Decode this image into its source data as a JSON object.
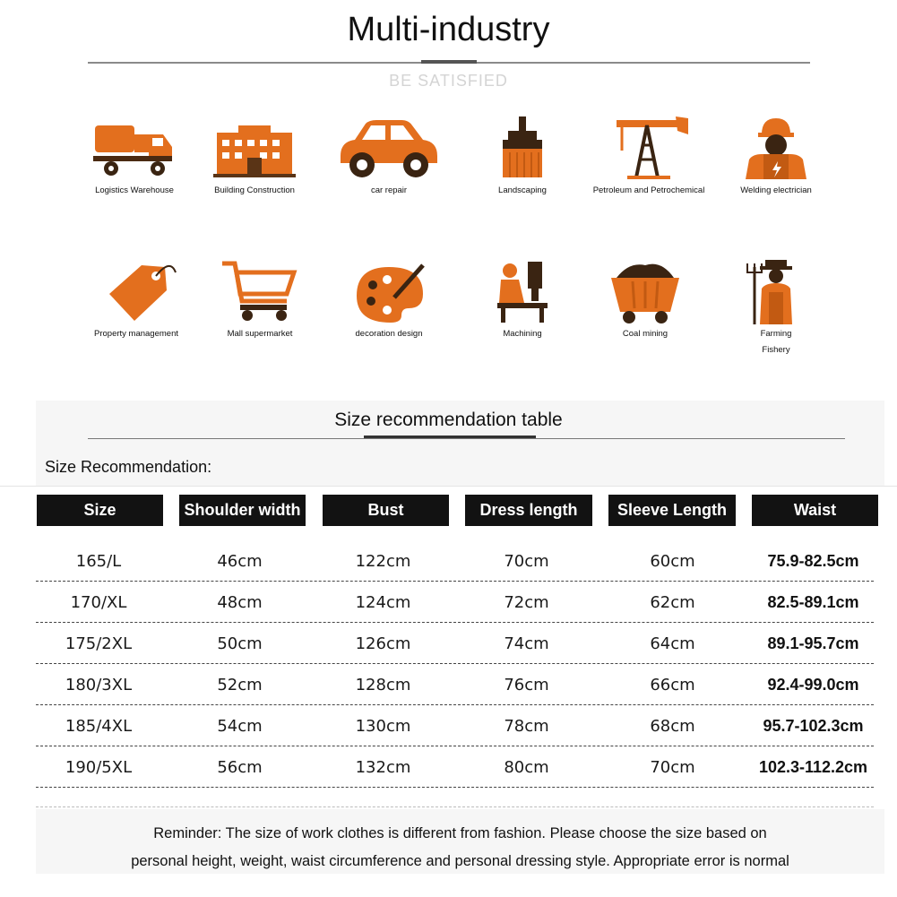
{
  "header": {
    "title": "Multi-industry",
    "subtitle": "BE SATISFIED"
  },
  "industries": [
    {
      "label": "Logistics Warehouse",
      "icon": "mixer-truck-icon"
    },
    {
      "label": "Building Construction",
      "icon": "building-icon"
    },
    {
      "label": "car repair",
      "icon": "car-icon"
    },
    {
      "label": "Landscaping",
      "icon": "brush-icon"
    },
    {
      "label": "Petroleum and Petrochemical",
      "icon": "oil-pump-icon"
    },
    {
      "label": "Welding electrician",
      "icon": "worker-icon"
    },
    {
      "label": "Property management",
      "icon": "price-tag-icon"
    },
    {
      "label": "Mall supermarket",
      "icon": "shopping-cart-icon"
    },
    {
      "label": "decoration design",
      "icon": "paint-palette-icon"
    },
    {
      "label": "Machining",
      "icon": "drill-press-icon"
    },
    {
      "label": "Coal mining",
      "icon": "mine-cart-icon"
    },
    {
      "label": "Farming",
      "label2": "Fishery",
      "icon": "farmer-icon"
    }
  ],
  "size_section": {
    "title": "Size recommendation table",
    "label": "Size Recommendation:"
  },
  "size_table": {
    "columns": [
      "Size",
      "Shoulder width",
      "Bust",
      "Dress length",
      "Sleeve Length",
      "Waist"
    ],
    "rows": [
      [
        "165/L",
        "46cm",
        "122cm",
        "70cm",
        "60cm",
        "75.9-82.5cm"
      ],
      [
        "170/XL",
        "48cm",
        "124cm",
        "72cm",
        "62cm",
        "82.5-89.1cm"
      ],
      [
        "175/2XL",
        "50cm",
        "126cm",
        "74cm",
        "64cm",
        "89.1-95.7cm"
      ],
      [
        "180/3XL",
        "52cm",
        "128cm",
        "76cm",
        "66cm",
        "92.4-99.0cm"
      ],
      [
        "185/4XL",
        "54cm",
        "130cm",
        "78cm",
        "68cm",
        "95.7-102.3cm"
      ],
      [
        "190/5XL",
        "56cm",
        "132cm",
        "80cm",
        "70cm",
        "102.3-112.2cm"
      ]
    ]
  },
  "reminder": {
    "line1": "Reminder: The size of work clothes is different from fashion. Please choose the size based on",
    "line2": "personal height, weight, waist circumference and personal dressing style. Appropriate error is normal"
  },
  "colors": {
    "accent_orange": "#e36f1e",
    "header_black": "#121212"
  }
}
